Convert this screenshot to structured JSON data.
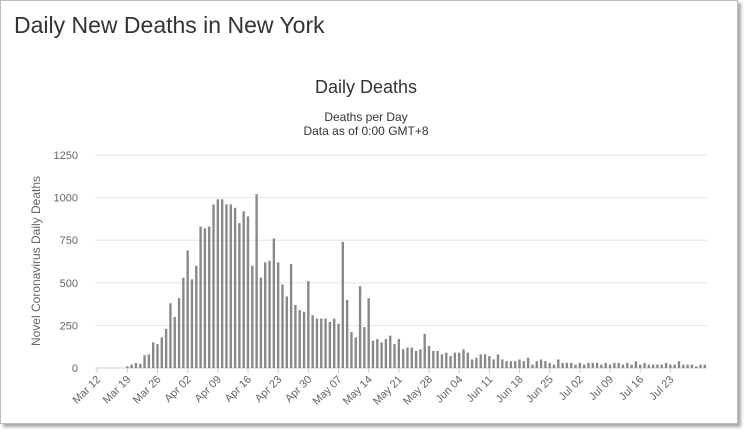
{
  "page": {
    "title": "Daily New Deaths in New York"
  },
  "colors": {
    "bar": "#888888",
    "grid": "#e6e6e6",
    "text": "#333333",
    "axis_text": "#666666"
  },
  "chart_data": {
    "type": "bar",
    "title": "Daily Deaths",
    "subtitle_lines": [
      "Deaths per Day",
      "Data as of 0:00 GMT+8"
    ],
    "ylabel": "Novel Coronavirus Daily Deaths",
    "xlabel": "",
    "ylim": [
      0,
      1250
    ],
    "y_ticks": [
      "0",
      "250",
      "500",
      "750",
      "1000",
      "1250"
    ],
    "x_start": "2020-03-12",
    "x_tick_labels": [
      "Mar 12",
      "Mar 19",
      "Mar 26",
      "Apr 02",
      "Apr 09",
      "Apr 16",
      "Apr 23",
      "Apr 30",
      "May 07",
      "May 14",
      "May 21",
      "May 28",
      "Jun 04",
      "Jun 11",
      "Jun 18",
      "Jun 25",
      "Jul 02",
      "Jul 09",
      "Jul 16",
      "Jul 23"
    ],
    "grid": true,
    "legend": "none",
    "values": [
      0,
      0,
      0,
      0,
      0,
      0,
      0,
      10,
      20,
      30,
      25,
      75,
      80,
      150,
      140,
      180,
      230,
      380,
      300,
      410,
      530,
      690,
      520,
      600,
      830,
      820,
      830,
      960,
      990,
      990,
      960,
      960,
      940,
      850,
      920,
      890,
      600,
      1020,
      530,
      620,
      630,
      760,
      620,
      490,
      420,
      610,
      370,
      340,
      330,
      510,
      310,
      290,
      290,
      290,
      270,
      290,
      260,
      740,
      400,
      210,
      180,
      480,
      240,
      410,
      160,
      170,
      150,
      170,
      190,
      140,
      170,
      110,
      120,
      120,
      100,
      110,
      200,
      130,
      100,
      100,
      80,
      90,
      70,
      90,
      90,
      110,
      90,
      50,
      60,
      80,
      80,
      70,
      50,
      80,
      50,
      40,
      40,
      40,
      50,
      40,
      60,
      20,
      40,
      50,
      40,
      30,
      20,
      50,
      30,
      30,
      30,
      20,
      30,
      20,
      30,
      30,
      30,
      20,
      30,
      20,
      30,
      30,
      20,
      30,
      20,
      40,
      20,
      30,
      20,
      20,
      20,
      20,
      30,
      20,
      20,
      40,
      20,
      20,
      20,
      10,
      20,
      20
    ]
  }
}
